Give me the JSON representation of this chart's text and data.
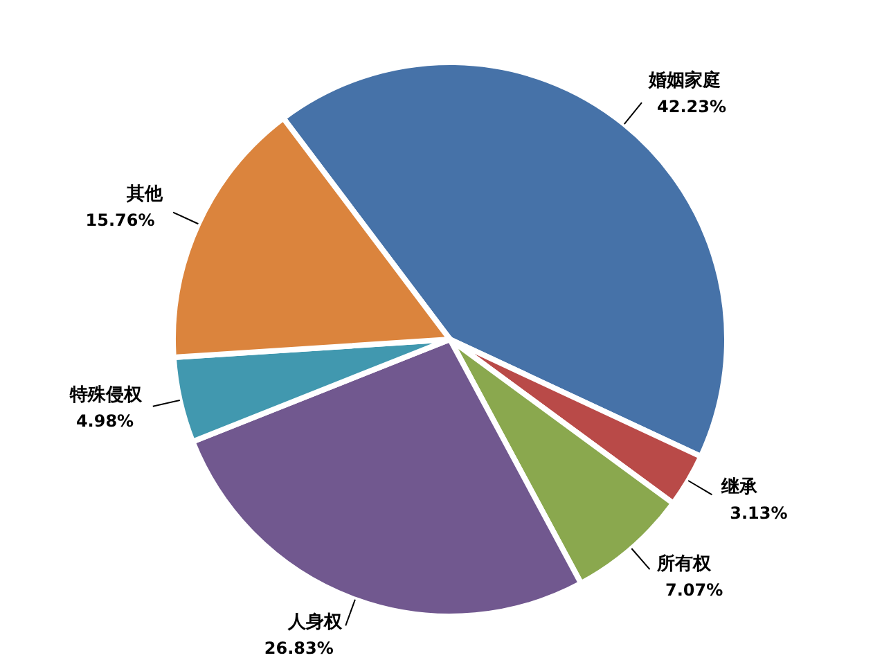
{
  "chart_data": {
    "type": "pie",
    "categories": [
      "婚姻家庭",
      "继承",
      "所有权",
      "人身权",
      "特殊侵权",
      "其他"
    ],
    "values": [
      42.23,
      3.13,
      7.07,
      26.83,
      4.98,
      15.76
    ],
    "value_labels": [
      "42.23%",
      "3.13%",
      "7.07%",
      "26.83%",
      "4.98%",
      "15.76%"
    ],
    "colors": [
      "#4672a8",
      "#b94a48",
      "#8aa84e",
      "#71588f",
      "#4198af",
      "#db843d"
    ],
    "legend": false
  }
}
